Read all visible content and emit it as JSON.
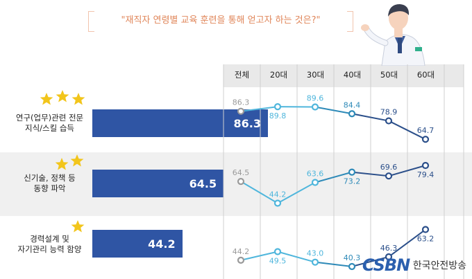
{
  "question": "\"재직자 연령별 교육 훈련을 통해 얻고자 하는 것은?\"",
  "columns": [
    "전체",
    "20대",
    "30대",
    "40대",
    "50대",
    "60대"
  ],
  "watermark": {
    "logo": "CSBN",
    "text": "한국안전방송"
  },
  "colors": {
    "bar": "#2f55a4",
    "overall": "#9a9a9a",
    "line_light": "#4fb6dc",
    "line_mid": "#2e8ab8",
    "line_dark": "#2b4f8a",
    "star": "#f2c51b",
    "accent": "#e0865a"
  },
  "chart_data": [
    {
      "type": "bar",
      "orientation": "horizontal",
      "categories": [
        "연구(업무)관련 전문\n지식/스킬 습득",
        "신기술, 정책 등\n동향 파악",
        "경력설계 및\n자기관리 능력 함양"
      ],
      "stars": [
        3,
        2,
        1
      ],
      "values": [
        86.3,
        64.5,
        44.2
      ],
      "xlim": [
        0,
        100
      ]
    },
    {
      "type": "line",
      "x": [
        "전체",
        "20대",
        "30대",
        "40대",
        "50대",
        "60대"
      ],
      "series": [
        {
          "values": [
            86.3,
            89.8,
            89.6,
            84.4,
            78.9,
            64.7
          ]
        },
        {
          "values": [
            64.5,
            44.2,
            63.6,
            73.2,
            69.6,
            79.4
          ]
        },
        {
          "values": [
            44.2,
            49.5,
            43.0,
            40.3,
            46.3,
            63.2
          ]
        }
      ]
    }
  ]
}
